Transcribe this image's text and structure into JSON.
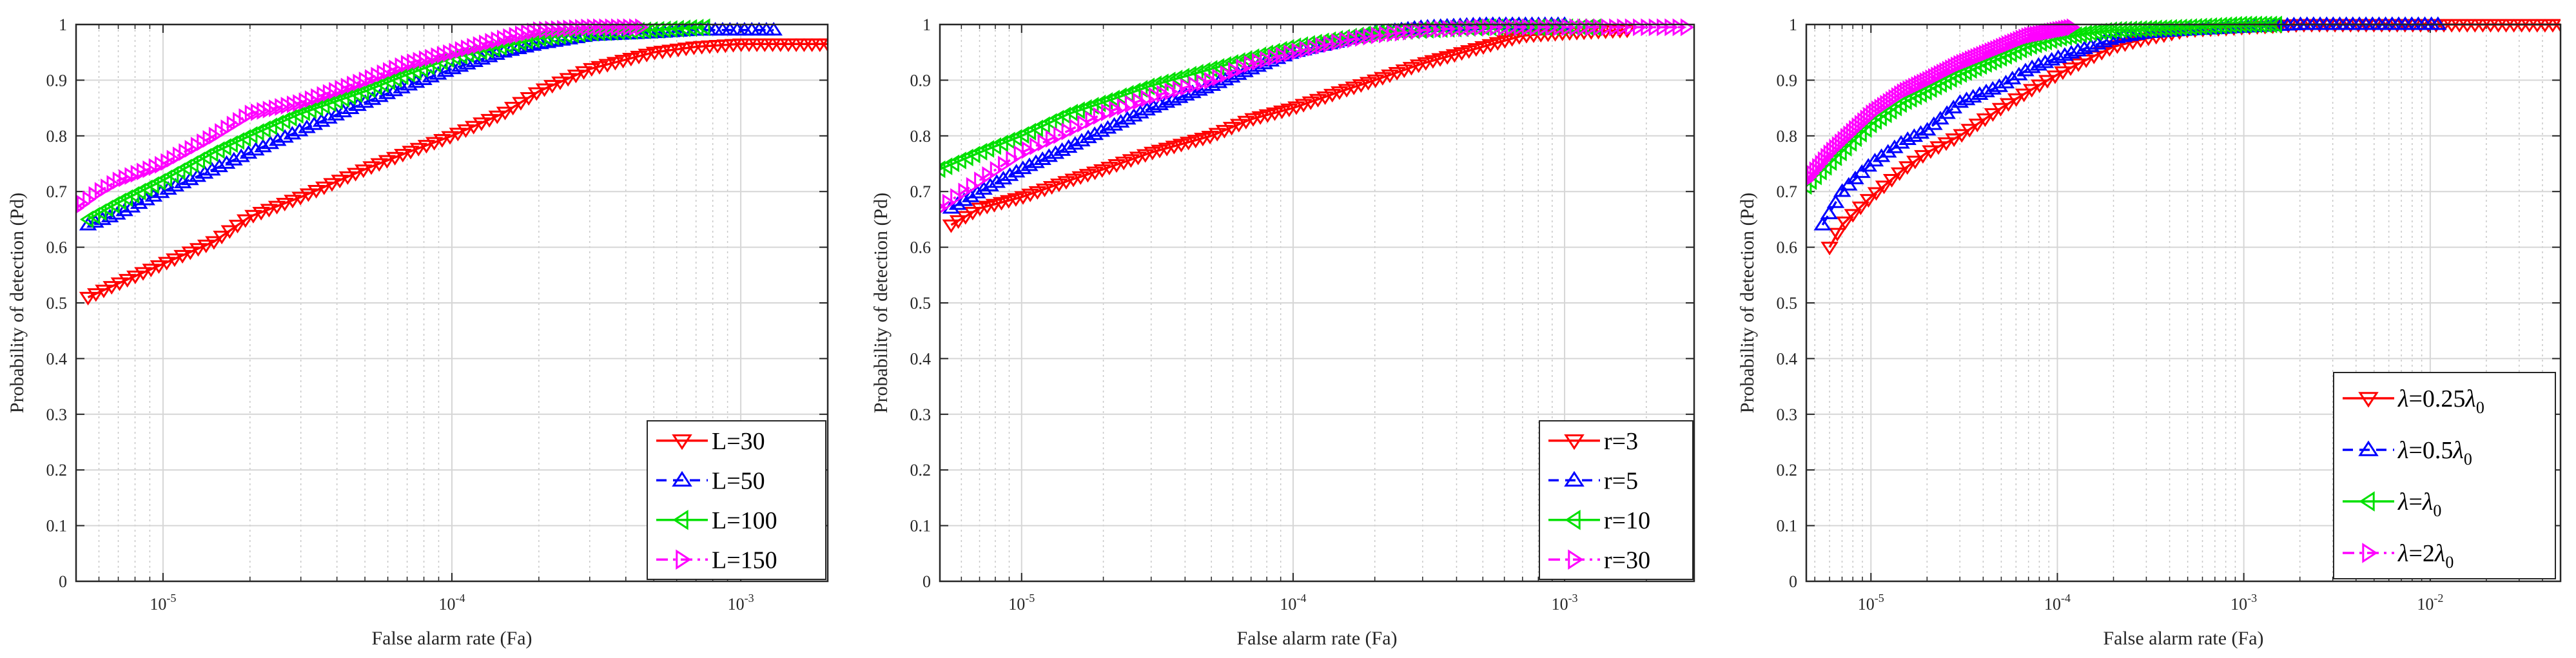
{
  "chart_data": [
    {
      "type": "line",
      "xscale": "log",
      "title": "",
      "xlabel": "False alarm rate (Fa)",
      "ylabel": "Probability of detection (Pd)",
      "xlim": [
        5e-06,
        0.002
      ],
      "ylim": [
        0,
        1
      ],
      "yticks": [
        "0",
        "0.1",
        "0.2",
        "0.3",
        "0.4",
        "0.5",
        "0.6",
        "0.7",
        "0.8",
        "0.9",
        "1"
      ],
      "xticks": [
        {
          "base": "10",
          "exp": "-5",
          "value": 1e-05
        },
        {
          "base": "10",
          "exp": "-4",
          "value": 0.0001
        },
        {
          "base": "10",
          "exp": "-3",
          "value": 0.001
        }
      ],
      "grid": true,
      "legend_position": "bottom-right",
      "series": [
        {
          "name": "L=30",
          "label_parts": [
            {
              "t": "L=30"
            }
          ],
          "color": "#ff0000",
          "marker": "triangle-down",
          "dash": "solid",
          "points": [
            [
              5.5e-06,
              0.51
            ],
            [
              7e-06,
              0.535
            ],
            [
              1e-05,
              0.57
            ],
            [
              1.5e-05,
              0.61
            ],
            [
              2e-05,
              0.655
            ],
            [
              3e-05,
              0.69
            ],
            [
              5e-05,
              0.74
            ],
            [
              7e-05,
              0.77
            ],
            [
              0.0001,
              0.8
            ],
            [
              0.00015,
              0.84
            ],
            [
              0.0002,
              0.88
            ],
            [
              0.0003,
              0.92
            ],
            [
              0.0005,
              0.95
            ],
            [
              0.0007,
              0.96
            ],
            [
              0.001,
              0.965
            ],
            [
              0.002,
              0.965
            ]
          ]
        },
        {
          "name": "L=50",
          "label_parts": [
            {
              "t": "L=50"
            }
          ],
          "color": "#0000ff",
          "marker": "triangle-up",
          "dash": "dashed",
          "points": [
            [
              5.5e-06,
              0.64
            ],
            [
              7e-06,
              0.66
            ],
            [
              1e-05,
              0.7
            ],
            [
              1.5e-05,
              0.74
            ],
            [
              2e-05,
              0.77
            ],
            [
              3e-05,
              0.81
            ],
            [
              5e-05,
              0.86
            ],
            [
              7e-05,
              0.89
            ],
            [
              0.0001,
              0.92
            ],
            [
              0.00015,
              0.95
            ],
            [
              0.0002,
              0.965
            ],
            [
              0.0003,
              0.98
            ],
            [
              0.0005,
              0.985
            ],
            [
              0.0007,
              0.99
            ],
            [
              0.001,
              0.99
            ],
            [
              0.0013,
              0.99
            ]
          ]
        },
        {
          "name": "L=100",
          "label_parts": [
            {
              "t": "L=100"
            }
          ],
          "color": "#00e000",
          "marker": "triangle-left",
          "dash": "solid",
          "points": [
            [
              5.5e-06,
              0.65
            ],
            [
              7e-06,
              0.68
            ],
            [
              1e-05,
              0.72
            ],
            [
              1.5e-05,
              0.77
            ],
            [
              2e-05,
              0.8
            ],
            [
              3e-05,
              0.84
            ],
            [
              5e-05,
              0.88
            ],
            [
              7e-05,
              0.91
            ],
            [
              0.0001,
              0.94
            ],
            [
              0.00015,
              0.96
            ],
            [
              0.0002,
              0.975
            ],
            [
              0.0003,
              0.985
            ],
            [
              0.0005,
              0.99
            ],
            [
              0.00075,
              0.995
            ]
          ]
        },
        {
          "name": "L=150",
          "label_parts": [
            {
              "t": "L=150"
            }
          ],
          "color": "#ff00ff",
          "marker": "triangle-right",
          "dash": "dashdot",
          "points": [
            [
              5e-06,
              0.67
            ],
            [
              6e-06,
              0.7
            ],
            [
              7e-06,
              0.72
            ],
            [
              1e-05,
              0.75
            ],
            [
              1.5e-05,
              0.8
            ],
            [
              2e-05,
              0.84
            ],
            [
              3e-05,
              0.86
            ],
            [
              5e-05,
              0.9
            ],
            [
              7e-05,
              0.93
            ],
            [
              0.0001,
              0.95
            ],
            [
              0.00015,
              0.975
            ],
            [
              0.0002,
              0.99
            ],
            [
              0.0003,
              0.995
            ],
            [
              0.00045,
              0.995
            ]
          ]
        }
      ]
    },
    {
      "type": "line",
      "xscale": "log",
      "title": "",
      "xlabel": "False alarm rate (Fa)",
      "ylabel": "Probability of detection (Pd)",
      "xlim": [
        5e-06,
        0.003
      ],
      "ylim": [
        0,
        1
      ],
      "yticks": [
        "0",
        "0.1",
        "0.2",
        "0.3",
        "0.4",
        "0.5",
        "0.6",
        "0.7",
        "0.8",
        "0.9",
        "1"
      ],
      "xticks": [
        {
          "base": "10",
          "exp": "-5",
          "value": 1e-05
        },
        {
          "base": "10",
          "exp": "-4",
          "value": 0.0001
        },
        {
          "base": "10",
          "exp": "-3",
          "value": 0.001
        }
      ],
      "grid": true,
      "legend_position": "bottom-right",
      "series": [
        {
          "name": "r=3",
          "label_parts": [
            {
              "t": "r=3"
            }
          ],
          "color": "#ff0000",
          "marker": "triangle-down",
          "dash": "solid",
          "points": [
            [
              5.5e-06,
              0.64
            ],
            [
              7e-06,
              0.67
            ],
            [
              1e-05,
              0.69
            ],
            [
              1.5e-05,
              0.72
            ],
            [
              2e-05,
              0.74
            ],
            [
              3e-05,
              0.77
            ],
            [
              5e-05,
              0.8
            ],
            [
              7e-05,
              0.83
            ],
            [
              0.0001,
              0.85
            ],
            [
              0.00015,
              0.88
            ],
            [
              0.0002,
              0.9
            ],
            [
              0.0003,
              0.93
            ],
            [
              0.0005,
              0.96
            ],
            [
              0.0007,
              0.98
            ],
            [
              0.001,
              0.985
            ],
            [
              0.0017,
              0.99
            ]
          ]
        },
        {
          "name": "r=5",
          "label_parts": [
            {
              "t": "r=5"
            }
          ],
          "color": "#0000ff",
          "marker": "triangle-up",
          "dash": "dashed",
          "points": [
            [
              5.5e-06,
              0.67
            ],
            [
              7e-06,
              0.7
            ],
            [
              1e-05,
              0.74
            ],
            [
              1.5e-05,
              0.78
            ],
            [
              2e-05,
              0.81
            ],
            [
              3e-05,
              0.85
            ],
            [
              5e-05,
              0.89
            ],
            [
              7e-05,
              0.92
            ],
            [
              0.0001,
              0.95
            ],
            [
              0.00015,
              0.97
            ],
            [
              0.0002,
              0.985
            ],
            [
              0.0003,
              0.995
            ],
            [
              0.0005,
              1.0
            ],
            [
              0.001,
              1.0
            ]
          ]
        },
        {
          "name": "r=10",
          "label_parts": [
            {
              "t": "r=10"
            }
          ],
          "color": "#00e000",
          "marker": "triangle-left",
          "dash": "solid",
          "points": [
            [
              5e-06,
              0.74
            ],
            [
              7e-06,
              0.77
            ],
            [
              1e-05,
              0.8
            ],
            [
              1.5e-05,
              0.84
            ],
            [
              2e-05,
              0.86
            ],
            [
              3e-05,
              0.89
            ],
            [
              5e-05,
              0.92
            ],
            [
              7e-05,
              0.94
            ],
            [
              0.0001,
              0.96
            ],
            [
              0.00015,
              0.975
            ],
            [
              0.0002,
              0.985
            ],
            [
              0.0003,
              0.99
            ],
            [
              0.0005,
              0.995
            ],
            [
              0.001,
              0.995
            ],
            [
              0.0013,
              0.995
            ]
          ]
        },
        {
          "name": "r=30",
          "label_parts": [
            {
              "t": "r=30"
            }
          ],
          "color": "#ff00ff",
          "marker": "triangle-right",
          "dash": "dashdot",
          "points": [
            [
              5e-06,
              0.67
            ],
            [
              7e-06,
              0.72
            ],
            [
              1e-05,
              0.77
            ],
            [
              1.5e-05,
              0.81
            ],
            [
              2e-05,
              0.84
            ],
            [
              3e-05,
              0.87
            ],
            [
              5e-05,
              0.9
            ],
            [
              7e-05,
              0.93
            ],
            [
              0.0001,
              0.95
            ],
            [
              0.00015,
              0.97
            ],
            [
              0.0002,
              0.98
            ],
            [
              0.0003,
              0.99
            ],
            [
              0.0005,
              0.995
            ],
            [
              0.001,
              0.995
            ],
            [
              0.002,
              0.995
            ],
            [
              0.0028,
              0.995
            ]
          ]
        }
      ]
    },
    {
      "type": "line",
      "xscale": "log",
      "title": "",
      "xlabel": "False alarm rate (Fa)",
      "ylabel": "Probability of detection (Pd)",
      "xlim": [
        4.5e-06,
        0.05
      ],
      "ylim": [
        0,
        1
      ],
      "yticks": [
        "0",
        "0.1",
        "0.2",
        "0.3",
        "0.4",
        "0.5",
        "0.6",
        "0.7",
        "0.8",
        "0.9",
        "1"
      ],
      "xticks": [
        {
          "base": "10",
          "exp": "-5",
          "value": 1e-05
        },
        {
          "base": "10",
          "exp": "-4",
          "value": 0.0001
        },
        {
          "base": "10",
          "exp": "-3",
          "value": 0.001
        },
        {
          "base": "10",
          "exp": "-2",
          "value": 0.01
        }
      ],
      "grid": true,
      "legend_position": "bottom-right",
      "series": [
        {
          "name": "λ=0.25λ0",
          "label_parts": [
            {
              "t": "λ",
              "italic": true
            },
            {
              "t": "=0.25"
            },
            {
              "t": "λ",
              "italic": true
            },
            {
              "t": "0",
              "sub": true
            }
          ],
          "color": "#ff0000",
          "marker": "triangle-down",
          "dash": "solid",
          "points": [
            [
              6e-06,
              0.6
            ],
            [
              7e-06,
              0.64
            ],
            [
              1e-05,
              0.69
            ],
            [
              1.5e-05,
              0.74
            ],
            [
              2e-05,
              0.77
            ],
            [
              3e-05,
              0.8
            ],
            [
              5e-05,
              0.85
            ],
            [
              7e-05,
              0.88
            ],
            [
              0.0001,
              0.91
            ],
            [
              0.00015,
              0.94
            ],
            [
              0.0002,
              0.96
            ],
            [
              0.0003,
              0.975
            ],
            [
              0.0005,
              0.99
            ],
            [
              0.001,
              0.995
            ],
            [
              0.002,
              1.0
            ],
            [
              0.005,
              1.0
            ],
            [
              0.01,
              1.0
            ],
            [
              0.03,
              1.0
            ],
            [
              0.05,
              1.0
            ]
          ]
        },
        {
          "name": "λ=0.5λ0",
          "label_parts": [
            {
              "t": "λ",
              "italic": true
            },
            {
              "t": "=0.5"
            },
            {
              "t": "λ",
              "italic": true
            },
            {
              "t": "0",
              "sub": true
            }
          ],
          "color": "#0000ff",
          "marker": "triangle-up",
          "dash": "dashed",
          "points": [
            [
              5.5e-06,
              0.64
            ],
            [
              7e-06,
              0.7
            ],
            [
              1e-05,
              0.75
            ],
            [
              1.5e-05,
              0.79
            ],
            [
              2e-05,
              0.81
            ],
            [
              3e-05,
              0.86
            ],
            [
              5e-05,
              0.89
            ],
            [
              7e-05,
              0.92
            ],
            [
              0.0001,
              0.94
            ],
            [
              0.00015,
              0.96
            ],
            [
              0.0002,
              0.975
            ],
            [
              0.0003,
              0.985
            ],
            [
              0.0005,
              0.99
            ],
            [
              0.001,
              0.995
            ],
            [
              0.002,
              1.0
            ],
            [
              0.005,
              1.0
            ],
            [
              0.011,
              1.0
            ]
          ]
        },
        {
          "name": "λ=λ0",
          "label_parts": [
            {
              "t": "λ",
              "italic": true
            },
            {
              "t": "="
            },
            {
              "t": "λ",
              "italic": true
            },
            {
              "t": "0",
              "sub": true
            }
          ],
          "color": "#00e000",
          "marker": "triangle-left",
          "dash": "solid",
          "points": [
            [
              4.5e-06,
              0.71
            ],
            [
              6e-06,
              0.75
            ],
            [
              8e-06,
              0.79
            ],
            [
              1e-05,
              0.82
            ],
            [
              1.5e-05,
              0.86
            ],
            [
              2e-05,
              0.88
            ],
            [
              3e-05,
              0.91
            ],
            [
              5e-05,
              0.94
            ],
            [
              7e-05,
              0.96
            ],
            [
              0.0001,
              0.975
            ],
            [
              0.00015,
              0.985
            ],
            [
              0.0002,
              0.99
            ],
            [
              0.0005,
              0.995
            ],
            [
              0.001,
              1.0
            ],
            [
              0.0015,
              1.0
            ]
          ]
        },
        {
          "name": "λ=2λ0",
          "label_parts": [
            {
              "t": "λ",
              "italic": true
            },
            {
              "t": "=2"
            },
            {
              "t": "λ",
              "italic": true
            },
            {
              "t": "0",
              "sub": true
            }
          ],
          "color": "#ff00ff",
          "marker": "triangle-right",
          "dash": "dashdot",
          "points": [
            [
              4.5e-06,
              0.72
            ],
            [
              6e-06,
              0.77
            ],
            [
              8e-06,
              0.81
            ],
            [
              1e-05,
              0.84
            ],
            [
              1.5e-05,
              0.88
            ],
            [
              2e-05,
              0.9
            ],
            [
              3e-05,
              0.93
            ],
            [
              5e-05,
              0.96
            ],
            [
              7e-05,
              0.98
            ],
            [
              0.0001,
              0.99
            ],
            [
              0.00012,
              0.995
            ]
          ]
        }
      ]
    }
  ]
}
